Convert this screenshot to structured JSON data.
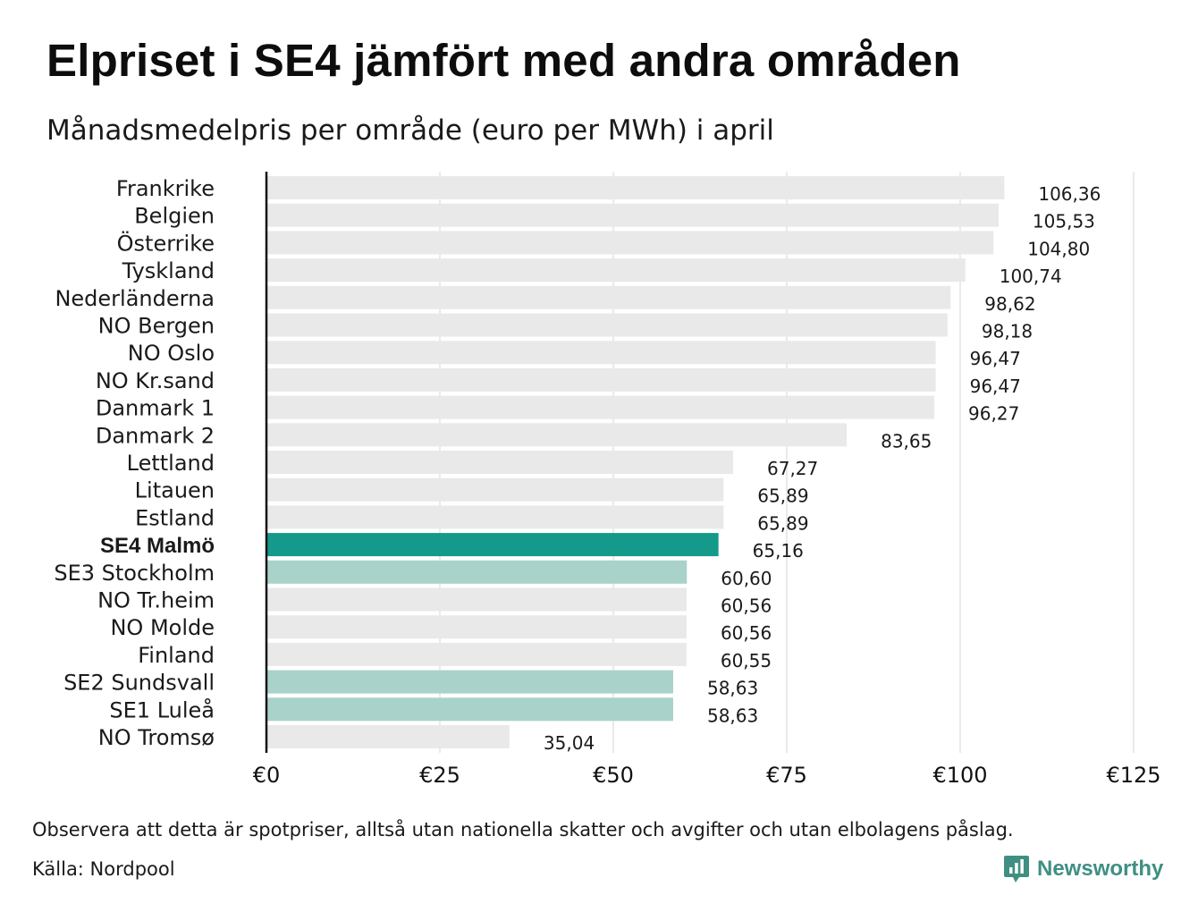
{
  "title": "Elpriset i SE4 jämfört med andra områden",
  "subtitle": "Månadsmedelpris per område (euro per MWh) i april",
  "footnote": "Observera att detta är spotpriser, alltså utan nationella skatter och avgifter och utan elbolagens påslag.",
  "source": "Källa: Nordpool",
  "brand": {
    "name": "Newsworthy",
    "icon": "newsworthy-logo-icon"
  },
  "colors": {
    "default_bar": "#e9e9e9",
    "highlight_bar": "#15998a",
    "swedish_bar": "#a8d2ca",
    "grid": "#d4d4d4",
    "axis": "#111111",
    "brand": "#3f8f83"
  },
  "chart_data": {
    "type": "bar",
    "orientation": "horizontal",
    "categories": [
      "Frankrike",
      "Belgien",
      "Österrike",
      "Tyskland",
      "Nederländerna",
      "NO Bergen",
      "NO Oslo",
      "NO Kr.sand",
      "Danmark 1",
      "Danmark 2",
      "Lettland",
      "Litauen",
      "Estland",
      "SE4 Malmö",
      "SE3 Stockholm",
      "NO Tr.heim",
      "NO Molde",
      "Finland",
      "SE2 Sundsvall",
      "SE1 Luleå",
      "NO Tromsø"
    ],
    "values": [
      106.36,
      105.53,
      104.8,
      100.74,
      98.62,
      98.18,
      96.47,
      96.47,
      96.27,
      83.65,
      67.27,
      65.89,
      65.89,
      65.16,
      60.6,
      60.56,
      60.56,
      60.55,
      58.63,
      58.63,
      35.04
    ],
    "value_labels": [
      "106,36",
      "105,53",
      "104,80",
      "100,74",
      "98,62",
      "98,18",
      "96,47",
      "96,47",
      "96,27",
      "83,65",
      "67,27",
      "65,89",
      "65,89",
      "65,16",
      "60,60",
      "60,56",
      "60,56",
      "60,55",
      "58,63",
      "58,63",
      "35,04"
    ],
    "highlight": "SE4 Malmö",
    "swedish_areas": [
      "SE3 Stockholm",
      "SE2 Sundsvall",
      "SE1 Luleå"
    ],
    "xlim": [
      0,
      125
    ],
    "x_ticks": [
      0,
      25,
      50,
      75,
      100,
      125
    ],
    "x_tick_labels": [
      "€0",
      "€25",
      "€50",
      "€75",
      "€100",
      "€125"
    ],
    "grid": true,
    "legend": "none"
  }
}
